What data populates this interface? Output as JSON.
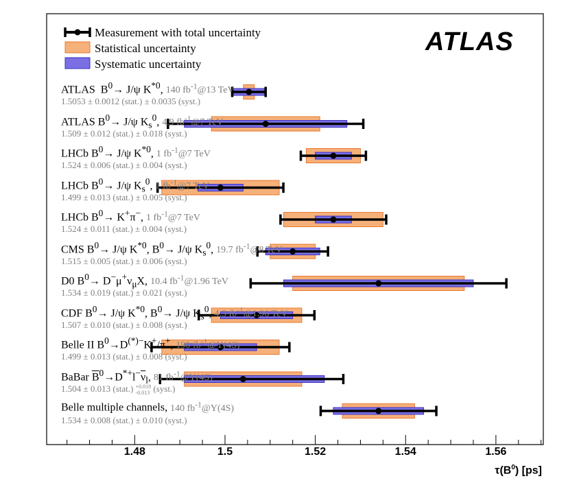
{
  "chart_data": {
    "type": "forest",
    "brand": "ATLAS",
    "xlabel_main": "τ(B",
    "xlabel_sup": "0",
    "xlabel_tail": ") [ps]",
    "xlim": [
      1.4605,
      1.5705
    ],
    "ticks": [
      "1.48",
      "1.5",
      "1.52",
      "1.54",
      "1.56"
    ],
    "tick_values": [
      1.48,
      1.5,
      1.52,
      1.54,
      1.56
    ],
    "legend": {
      "measurement": "Measurement with total uncertainty",
      "statistical": "Statistical uncertainty",
      "systematic": "Systematic uncertainty"
    },
    "colors": {
      "stat_fill": "#f6b079",
      "stat_edge": "#e8772e",
      "syst_fill": "#7a6fe3",
      "syst_edge": "#3b30c2",
      "point": "#000000",
      "grey_text": "#808080"
    },
    "measurements": [
      {
        "label_html": "ATLAS&nbsp; B<sup>0</sup>&#8594; J/&#968; K<sup>*0</sup>",
        "lumi_html": "140 fb<sup>-1</sup>@13 TeV",
        "values_html": "1.5053 &#177; 0.0012 (stat.) &#177; 0.0035 (syst.)",
        "value": 1.5053,
        "stat": 0.0012,
        "syst": 0.0035
      },
      {
        "label_html": "ATLAS B<sup>0</sup>&#8594; J/&#968; K<sub>s</sub><sup>0</sup>",
        "lumi_html": "4.9 fb<sup>-1</sup>@7 TeV",
        "values_html": "1.509 &#177; 0.012 (stat.) &#177; 0.018 (syst.)",
        "value": 1.509,
        "stat": 0.012,
        "syst": 0.018
      },
      {
        "label_html": "LHCb B<sup>0</sup>&#8594; J/&#968; K<sup>*0</sup>",
        "lumi_html": "1 fb<sup>-1</sup>@7 TeV",
        "values_html": "1.524 &#177; 0.006 (stat.) &#177; 0.004 (syst.)",
        "value": 1.524,
        "stat": 0.006,
        "syst": 0.004
      },
      {
        "label_html": "LHCb B<sup>0</sup>&#8594; J/&#968; K<sub>s</sub><sup>0</sup>",
        "lumi_html": "1 fb<sup>-1</sup>@7 TeV",
        "values_html": "1.499 &#177; 0.013 (stat.) &#177; 0.005 (syst.)",
        "value": 1.499,
        "stat": 0.013,
        "syst": 0.005
      },
      {
        "label_html": "LHCb B<sup>0</sup>&#8594; K<sup>+</sup>&#960;<sup>&#8722;</sup>",
        "lumi_html": "1 fb<sup>-1</sup>@7 TeV",
        "values_html": "1.524 &#177; 0.011 (stat.) &#177; 0.004 (syst.)",
        "value": 1.524,
        "stat": 0.011,
        "syst": 0.004
      },
      {
        "label_html": "CMS B<sup>0</sup>&#8594; J/&#968; K<sup>*0</sup>, B<sup>0</sup>&#8594; J/&#968; K<sub>s</sub><sup>0</sup>",
        "lumi_html": "19.7 fb<sup>-1</sup>@8 TeV",
        "values_html": "1.515 &#177; 0.005 (stat.) &#177; 0.006 (syst.)",
        "value": 1.515,
        "stat": 0.005,
        "syst": 0.006
      },
      {
        "label_html": "D0 B<sup>0</sup>&#8594; D<sup>&#8722;</sup>&#956;<sup>+</sup>&#957;<sub>&#956;</sub>X",
        "lumi_html": "10.4 fb<sup>-1</sup>@1.96 TeV",
        "values_html": "1.534 &#177; 0.019 (stat.) &#177; 0.021 (syst.)",
        "value": 1.534,
        "stat": 0.019,
        "syst": 0.021
      },
      {
        "label_html": "CDF B<sup>0</sup>&#8594; J/&#968; K<sup>*0</sup>, B<sup>0</sup>&#8594; J/&#968; K<sub>s</sub><sup>0</sup>",
        "lumi_html": "4.3 fb<sup>-1</sup>@1.96 TeV",
        "values_html": "1.507 &#177; 0.010 (stat.) &#177; 0.008 (syst.)",
        "value": 1.507,
        "stat": 0.01,
        "syst": 0.008
      },
      {
        "label_html": "Belle II B<sup>0</sup>&#8594;D<sup>(*)&#8722;</sup>K<sup>+</sup>/&#960;<sup>+</sup>",
        "lumi_html": "190 fb<sup>-1</sup>@&#933;(4S)",
        "values_html": "1.499 &#177; 0.013 (stat.) &#177; 0.008 (syst.)",
        "value": 1.499,
        "stat": 0.013,
        "syst": 0.008
      },
      {
        "label_html": "BaBar <span style=\"text-decoration:overline\">B</span><sup>0</sup>&#8594;D<sup>*+</sup>l<sup>&#8722;</sup><span style=\"text-decoration:overline\">&#957;</span><sub>l</sub>",
        "lumi_html": "81 fb<sup>-1</sup>@&#933;(4S)",
        "values_html": "1.504 &#177; 0.013 (stat.) <span style=\"display:inline-flex;flex-direction:column;font-size:8px;line-height:9px;vertical-align:middle\"><span>+0.018</span><span>-0.013</span></span> (syst.)",
        "value": 1.504,
        "stat": 0.013,
        "syst": 0.0155,
        "syst_plus": 0.018,
        "syst_minus": 0.013
      },
      {
        "label_html": "Belle multiple channels",
        "lumi_html": "140 fb<sup>-1</sup>@&#933;(4S)",
        "values_html": "1.534 &#177; 0.008 (stat.) &#177; 0.010 (syst.)",
        "value": 1.534,
        "stat": 0.008,
        "syst": 0.01
      }
    ]
  }
}
